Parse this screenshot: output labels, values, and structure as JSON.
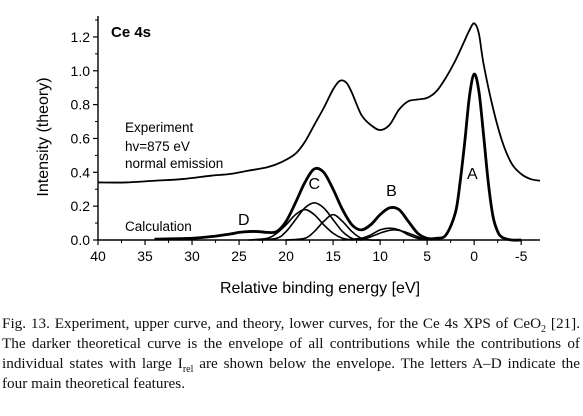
{
  "chart_data": {
    "type": "line",
    "panel_label": "Ce 4s",
    "xlabel": "Relative binding energy [eV]",
    "ylabel": "Intensity (theory)",
    "xlim": [
      40,
      -7
    ],
    "ylim": [
      0.0,
      1.3
    ],
    "x_ticks": [
      "40",
      "35",
      "30",
      "25",
      "20",
      "15",
      "10",
      "5",
      "0",
      "-5"
    ],
    "y_ticks": [
      "0.0",
      "0.2",
      "0.4",
      "0.6",
      "0.8",
      "1.0",
      "1.2"
    ],
    "annotations": {
      "experiment": [
        "Experiment",
        "hv=875 eV",
        "normal emission"
      ],
      "calculation": "Calculation"
    },
    "peak_labels": [
      {
        "label": "D",
        "x": 24.5,
        "y": 0.09
      },
      {
        "label": "C",
        "x": 17.0,
        "y": 0.3
      },
      {
        "label": "B",
        "x": 8.8,
        "y": 0.26
      },
      {
        "label": "A",
        "x": 0.2,
        "y": 0.36
      }
    ],
    "series": [
      {
        "kind": "experiment",
        "x": [
          40,
          37,
          34,
          31,
          28,
          26,
          24,
          22,
          20.5,
          19,
          18,
          17,
          16,
          15,
          14.3,
          13.6,
          13,
          12,
          11,
          10,
          9,
          8,
          7,
          6,
          5,
          4,
          3,
          2,
          1,
          0.5,
          0,
          -0.5,
          -1,
          -2,
          -3,
          -4,
          -5,
          -6,
          -7
        ],
        "y": [
          0.34,
          0.34,
          0.35,
          0.36,
          0.38,
          0.39,
          0.41,
          0.43,
          0.46,
          0.51,
          0.58,
          0.68,
          0.78,
          0.89,
          0.94,
          0.93,
          0.87,
          0.74,
          0.68,
          0.65,
          0.68,
          0.77,
          0.82,
          0.83,
          0.84,
          0.88,
          0.96,
          1.06,
          1.18,
          1.24,
          1.28,
          1.22,
          1.04,
          0.78,
          0.58,
          0.45,
          0.39,
          0.36,
          0.35
        ]
      },
      {
        "kind": "envelope",
        "x": [
          34,
          30,
          28,
          26,
          25,
          24,
          23,
          22,
          21,
          20,
          19,
          18,
          17,
          16,
          15,
          14,
          13,
          12,
          11,
          10,
          9,
          8,
          7,
          6,
          5,
          4,
          3,
          2,
          1.5,
          1,
          0.5,
          0,
          -0.5,
          -1,
          -1.5,
          -2,
          -2.5,
          -3,
          -4,
          -5
        ],
        "y": [
          0.005,
          0.01,
          0.02,
          0.035,
          0.045,
          0.05,
          0.05,
          0.045,
          0.05,
          0.11,
          0.22,
          0.34,
          0.42,
          0.4,
          0.3,
          0.18,
          0.09,
          0.06,
          0.09,
          0.15,
          0.19,
          0.18,
          0.11,
          0.04,
          0.01,
          0.01,
          0.03,
          0.16,
          0.34,
          0.58,
          0.85,
          0.98,
          0.88,
          0.62,
          0.34,
          0.14,
          0.05,
          0.015,
          0.0,
          0.0
        ]
      },
      {
        "kind": "component",
        "x": [
          24,
          22,
          21,
          20,
          19,
          18,
          17,
          16,
          15,
          14,
          13
        ],
        "y": [
          0.0,
          0.01,
          0.04,
          0.09,
          0.15,
          0.18,
          0.15,
          0.09,
          0.04,
          0.01,
          0.0
        ]
      },
      {
        "kind": "component",
        "x": [
          23,
          21,
          20,
          19,
          18,
          17,
          16,
          15,
          14,
          13,
          12
        ],
        "y": [
          0.0,
          0.01,
          0.05,
          0.12,
          0.19,
          0.22,
          0.19,
          0.12,
          0.05,
          0.01,
          0.0
        ]
      },
      {
        "kind": "component",
        "x": [
          20,
          18,
          17,
          16,
          15,
          14,
          13,
          12,
          11,
          10
        ],
        "y": [
          0.0,
          0.01,
          0.05,
          0.11,
          0.15,
          0.11,
          0.05,
          0.01,
          0.0,
          0.0
        ]
      },
      {
        "kind": "component",
        "x": [
          14,
          12,
          11,
          10,
          9,
          8,
          7,
          6,
          5
        ],
        "y": [
          0.0,
          0.01,
          0.03,
          0.06,
          0.07,
          0.06,
          0.03,
          0.01,
          0.0
        ]
      },
      {
        "kind": "component",
        "x": [
          13,
          11.5,
          10.5,
          9.5,
          8.5,
          7.5,
          6.5,
          5.5,
          4.5
        ],
        "y": [
          0.0,
          0.01,
          0.03,
          0.05,
          0.06,
          0.05,
          0.03,
          0.01,
          0.0
        ]
      }
    ]
  },
  "caption": {
    "fig_label": "Fig. 13.",
    "text_1": " Experiment, upper curve, and theory, lower curves, for the Ce 4s XPS of CeO",
    "sub_1": "2",
    "text_2": " [21]. The darker theoretical curve is the envelope of all contributions while the contributions of individual states with large I",
    "sub_2": "rel",
    "text_3": " are shown below the envelope. The letters A–D indicate the four main theoretical features."
  }
}
